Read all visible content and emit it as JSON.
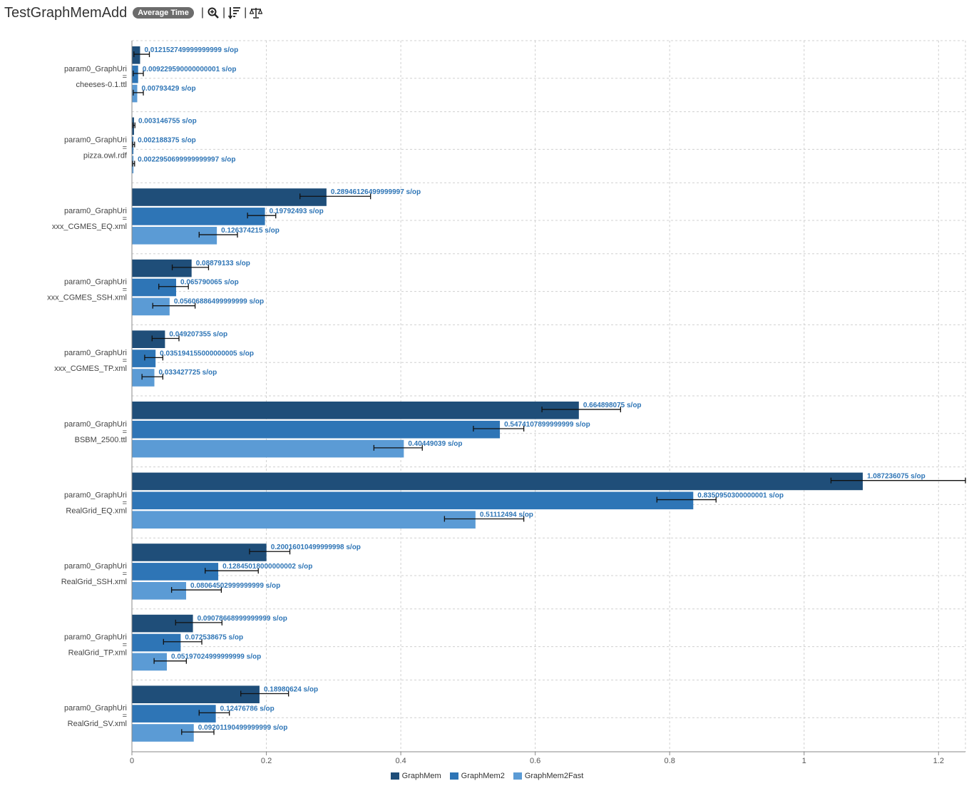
{
  "header": {
    "title": "TestGraphMemAdd",
    "badge": "Average Time"
  },
  "colors": {
    "GraphMem": "#1f4e79",
    "GraphMem2": "#2e75b6",
    "GraphMem2Fast": "#5b9bd5",
    "label": "#2e75b6",
    "grid": "#d0d0d0",
    "error": "#111111"
  },
  "chart_data": {
    "type": "bar",
    "orientation": "horizontal",
    "title": "TestGraphMemAdd",
    "xlim": [
      0,
      1.24
    ],
    "x_ticks": [
      0,
      0.2,
      0.4,
      0.6,
      0.8,
      1,
      1.2
    ],
    "x_tick_labels": [
      "0",
      "0.2",
      "0.4",
      "0.6",
      "0.8",
      "1",
      "1.2"
    ],
    "value_suffix": " s/op",
    "categories": [
      {
        "line1": "param0_GraphUri",
        "line2": "=",
        "line3": "cheeses-0.1.ttl"
      },
      {
        "line1": "param0_GraphUri",
        "line2": "=",
        "line3": "pizza.owl.rdf"
      },
      {
        "line1": "param0_GraphUri",
        "line2": "=",
        "line3": "xxx_CGMES_EQ.xml"
      },
      {
        "line1": "param0_GraphUri",
        "line2": "=",
        "line3": "xxx_CGMES_SSH.xml"
      },
      {
        "line1": "param0_GraphUri",
        "line2": "=",
        "line3": "xxx_CGMES_TP.xml"
      },
      {
        "line1": "param0_GraphUri",
        "line2": "=",
        "line3": "BSBM_2500.ttl"
      },
      {
        "line1": "param0_GraphUri",
        "line2": "=",
        "line3": "RealGrid_EQ.xml"
      },
      {
        "line1": "param0_GraphUri",
        "line2": "=",
        "line3": "RealGrid_SSH.xml"
      },
      {
        "line1": "param0_GraphUri",
        "line2": "=",
        "line3": "RealGrid_TP.xml"
      },
      {
        "line1": "param0_GraphUri",
        "line2": "=",
        "line3": "RealGrid_SV.xml"
      }
    ],
    "series": [
      {
        "name": "GraphMem",
        "values": [
          0.012152749999999999,
          0.003146755,
          0.28946126499999997,
          0.08879133,
          0.049207355,
          0.664898075,
          1.087236075,
          0.20016010499999998,
          0.09078668999999999,
          0.18980624
        ],
        "labels": [
          "0.012152749999999999",
          "0.003146755",
          "0.28946126499999997",
          "0.08879133",
          "0.049207355",
          "0.664898075",
          "1.087236075",
          "0.20016010499999998",
          "0.09078668999999999",
          "0.18980624"
        ],
        "err_low": [
          0.003,
          0.0015,
          0.25,
          0.06,
          0.03,
          0.61,
          1.04,
          0.175,
          0.065,
          0.162
        ],
        "err_high": [
          0.026,
          0.0045,
          0.355,
          0.114,
          0.07,
          0.727,
          1.24,
          0.235,
          0.134,
          0.233
        ]
      },
      {
        "name": "GraphMem2",
        "values": [
          0.009229590000000001,
          0.002188375,
          0.19792493,
          0.065790065,
          0.035194155000000005,
          0.5474107899999999,
          0.8350950300000001,
          0.12845018000000002,
          0.072538675,
          0.12476786
        ],
        "labels": [
          "0.009229590000000001",
          "0.002188375",
          "0.19792493",
          "0.065790065",
          "0.035194155000000005",
          "0.5474107899999999",
          "0.8350950300000001",
          "0.12845018000000002",
          "0.072538675",
          "0.12476786"
        ],
        "err_low": [
          0.002,
          0.001,
          0.172,
          0.04,
          0.019,
          0.508,
          0.781,
          0.109,
          0.047,
          0.1
        ],
        "err_high": [
          0.017,
          0.004,
          0.214,
          0.084,
          0.046,
          0.583,
          0.869,
          0.188,
          0.104,
          0.145
        ]
      },
      {
        "name": "GraphMem2Fast",
        "values": [
          0.00793429,
          0.0022950699999999997,
          0.126374215,
          0.05606886499999999,
          0.033427725,
          0.40449039,
          0.51112494,
          0.08064502999999999,
          0.05197024999999999,
          0.09201190499999999
        ],
        "labels": [
          "0.00793429",
          "0.0022950699999999997",
          "0.126374215",
          "0.05606886499999999",
          "0.033427725",
          "0.40449039",
          "0.51112494",
          "0.08064502999999999",
          "0.05197024999999999",
          "0.09201190499999999"
        ],
        "err_low": [
          0.002,
          0.001,
          0.1,
          0.031,
          0.015,
          0.36,
          0.465,
          0.059,
          0.033,
          0.074
        ],
        "err_high": [
          0.017,
          0.004,
          0.157,
          0.094,
          0.046,
          0.432,
          0.583,
          0.133,
          0.081,
          0.122
        ]
      }
    ]
  }
}
